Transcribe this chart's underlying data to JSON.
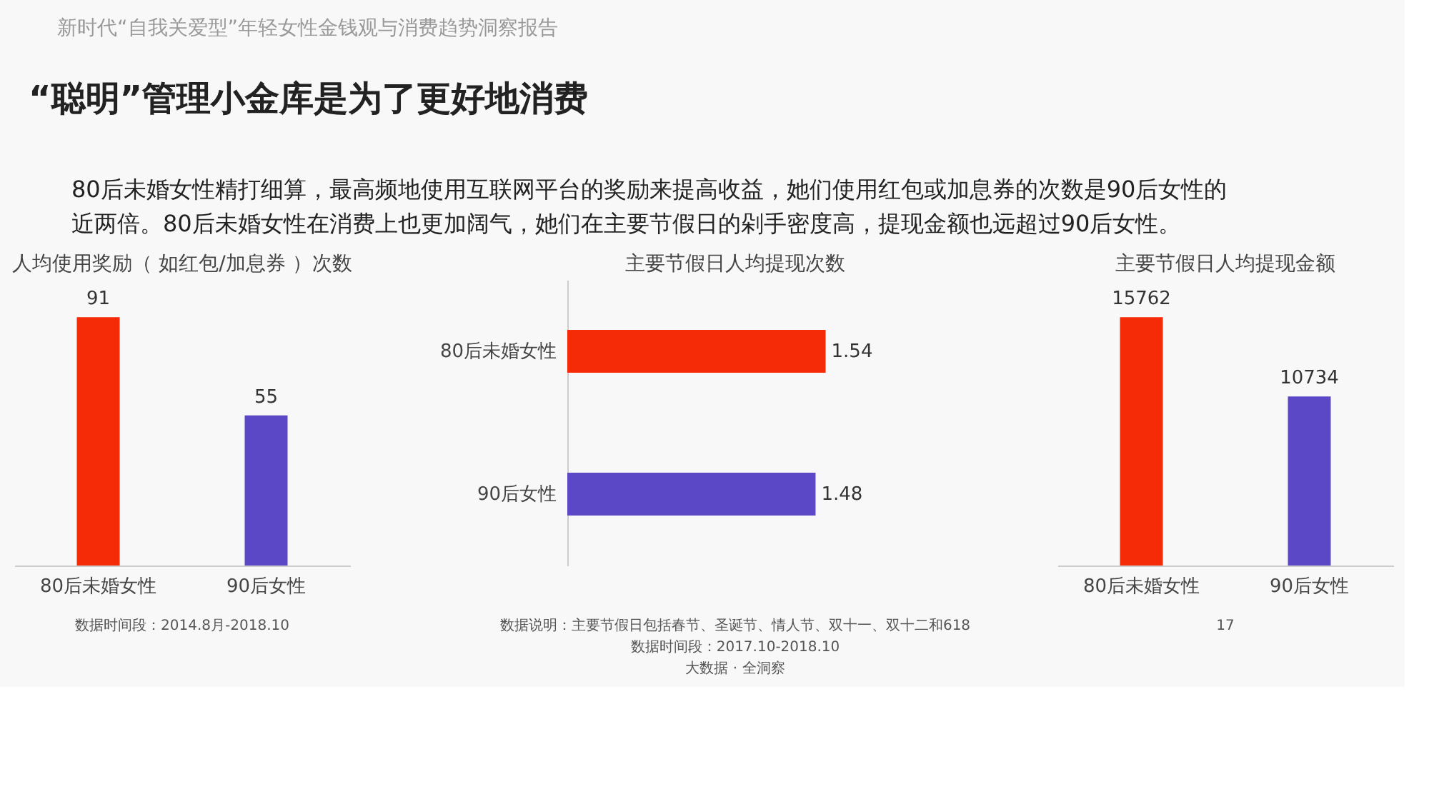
{
  "chart_data": [
    {
      "type": "other",
      "title": "“聪明”管理小金库是为了更好地消费",
      "subtitle": "80后未婚女性精打细算，最高频地使用互联网平台的奖励来提高收益，她们使用红包或加息券的次数是90后女性的近两倍。80后未婚女性在消费上也更加阔气，她们在主要节假日的剁手密度高，提现金额也远超过90后女性。",
      "annotations": [
        "新时代“自我关爱型”年轻女性金钱观与消费趋势洞察报告"
      ]
    },
    {
      "type": "bar",
      "title": "人均使用奖励（ 如红包/加息券 ）次数",
      "categories": [
        "80后未婚女性",
        "90后女性"
      ],
      "values": [
        91,
        55
      ],
      "colors": [
        "#f52a06",
        "#5b48c6"
      ],
      "data_labels": true,
      "annotations": [
        "数据时间段：2014.8月-2018.10"
      ]
    },
    {
      "type": "bar",
      "orientation": "horizontal",
      "title": "主要节假日人均提现次数",
      "categories": [
        "80后未婚女性",
        "90后女性"
      ],
      "values": [
        1.54,
        1.48
      ],
      "colors": [
        "#f52a06",
        "#5b48c6"
      ],
      "data_labels": true,
      "annotations": [
        "数据说明：主要节假日包括春节、圣诞节、情人节、双十一、双十二和618",
        "数据时间段：2017.10-2018.10",
        "大数据 · 全洞察"
      ]
    },
    {
      "type": "bar",
      "title": "主要节假日人均提现金额",
      "categories": [
        "80后未婚女性",
        "90后女性"
      ],
      "values": [
        15762,
        10734
      ],
      "colors": [
        "#f52a06",
        "#5b48c6"
      ],
      "data_labels": true,
      "annotations": [
        "17"
      ]
    }
  ]
}
